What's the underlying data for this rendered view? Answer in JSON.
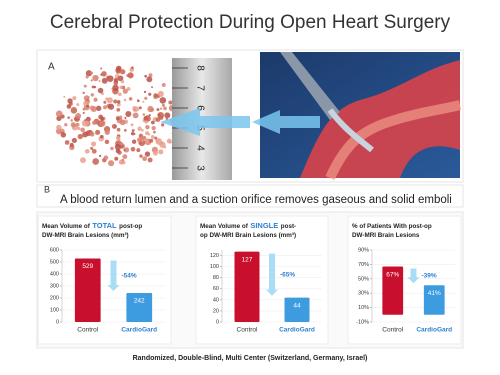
{
  "title": "Cerebral Protection During Open Heart Surgery",
  "panel_a": {
    "label": "A",
    "ruler_numbers": [
      "8",
      "7",
      "6",
      "5",
      "4",
      "3"
    ]
  },
  "panel_b": {
    "label": "B",
    "caption": "A blood return lumen and a suction orifice removes gaseous and solid emboli"
  },
  "footer": "Randomized, Double-Blind, Multi Center (Switzerland, Germany, Israel)",
  "chart_data": [
    {
      "type": "bar",
      "title_lines": [
        [
          "Mean Volume of",
          {
            "text": "TOTAL",
            "color": "#2f7fd0"
          },
          "post-op"
        ],
        [
          "DW-MRI Brain Lesions (mm³)"
        ]
      ],
      "categories": [
        "Control",
        "CardioGard"
      ],
      "category_colors": [
        "#333333",
        "#2f7fd0"
      ],
      "values": [
        529,
        242
      ],
      "colors": [
        "#c8102e",
        "#3d9be0"
      ],
      "change_label": "-54%",
      "ylim": [
        0,
        600
      ],
      "yticks": [
        0,
        100,
        200,
        300,
        400,
        500,
        600
      ],
      "grid": true
    },
    {
      "type": "bar",
      "title_lines": [
        [
          "Mean Volume of",
          {
            "text": "SINGLE",
            "color": "#2f7fd0"
          },
          "post-"
        ],
        [
          "op DW-MRI Brain Lesions (mm³)"
        ]
      ],
      "categories": [
        "Control",
        "CardioGard"
      ],
      "category_colors": [
        "#333333",
        "#2f7fd0"
      ],
      "values": [
        127,
        44
      ],
      "colors": [
        "#c8102e",
        "#3d9be0"
      ],
      "change_label": "-65%",
      "ylim": [
        0,
        130
      ],
      "yticks": [
        0,
        20,
        40,
        60,
        80,
        100,
        120
      ],
      "grid": true
    },
    {
      "type": "bar",
      "title_lines": [
        [
          "% of Patients With post-op"
        ],
        [
          "DW-MRI Brain Lesions"
        ]
      ],
      "categories": [
        "Control",
        "CardioGard"
      ],
      "category_colors": [
        "#333333",
        "#2f7fd0"
      ],
      "values": [
        67,
        41
      ],
      "value_labels": [
        "67%",
        "41%"
      ],
      "colors": [
        "#c8102e",
        "#3d9be0"
      ],
      "change_label": "-39%",
      "ylim": [
        -10,
        90
      ],
      "yticks": [
        {
          "value": -10,
          "label": "-10%"
        },
        {
          "value": 10,
          "label": "10%"
        },
        {
          "value": 30,
          "label": "30%"
        },
        {
          "value": 50,
          "label": "50%"
        },
        {
          "value": 70,
          "label": "70%"
        },
        {
          "value": 90,
          "label": "90%"
        }
      ],
      "grid": true
    }
  ]
}
